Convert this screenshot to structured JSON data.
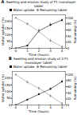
{
  "chart_data": [
    {
      "type": "line",
      "title": "Swelling and erosion study of F1 monolayer tablet",
      "annotations": [
        "A"
      ],
      "x": [
        0,
        1,
        2,
        3,
        4
      ],
      "xlim": [
        -0.3,
        4.3
      ],
      "xticks": [
        0,
        1,
        2,
        3,
        4
      ],
      "xlabel": "Time (hours)",
      "ylabel": "Water uptake (%)",
      "y2label": "Remaining (%)",
      "ylim": [
        0,
        250
      ],
      "yticks": [
        0,
        50,
        100,
        150,
        200
      ],
      "y2lim": [
        0,
        110
      ],
      "y2ticks": [
        0,
        20,
        40,
        60,
        80,
        100
      ],
      "legend": "top",
      "series": [
        {
          "name": "Water uptake",
          "color": "#111111",
          "marker": "square",
          "line_style": "solid",
          "values": [
            0,
            20,
            130,
            175,
            210
          ],
          "errors": [
            0,
            5,
            12,
            15,
            10
          ]
        },
        {
          "name": "Remaining tablet",
          "color": "#888888",
          "marker": "circle",
          "line_style": "dashed",
          "axis": "y2",
          "values": [
            100,
            80,
            55,
            25,
            5
          ],
          "errors": [
            0,
            6,
            6,
            6,
            3
          ]
        }
      ]
    },
    {
      "type": "line",
      "title": "Swelling and erosion study of 3-F1 monolayer tablet",
      "annotations": [
        "B"
      ],
      "x": [
        0,
        1,
        2,
        3,
        4
      ],
      "xlim": [
        -0.3,
        4.3
      ],
      "xticks": [
        0,
        1,
        2,
        3,
        4
      ],
      "xlabel": "Time (hours)",
      "ylabel": "Water uptake (%)",
      "y2label": "Remaining (%)",
      "ylim": [
        0,
        250
      ],
      "yticks": [
        0,
        50,
        100,
        150,
        200
      ],
      "y2lim": [
        0,
        110
      ],
      "y2ticks": [
        0,
        20,
        40,
        60,
        80,
        100
      ],
      "legend": "top",
      "series": [
        {
          "name": "Water uptake",
          "color": "#111111",
          "marker": "square",
          "line_style": "solid",
          "values": [
            0,
            40,
            80,
            120,
            175
          ],
          "errors": [
            0,
            5,
            8,
            10,
            12
          ]
        },
        {
          "name": "Remaining tablet",
          "color": "#888888",
          "marker": "circle",
          "line_style": "dashed",
          "axis": "y2",
          "values": [
            100,
            75,
            55,
            30,
            5
          ],
          "errors": [
            0,
            6,
            6,
            6,
            3
          ]
        }
      ]
    }
  ]
}
